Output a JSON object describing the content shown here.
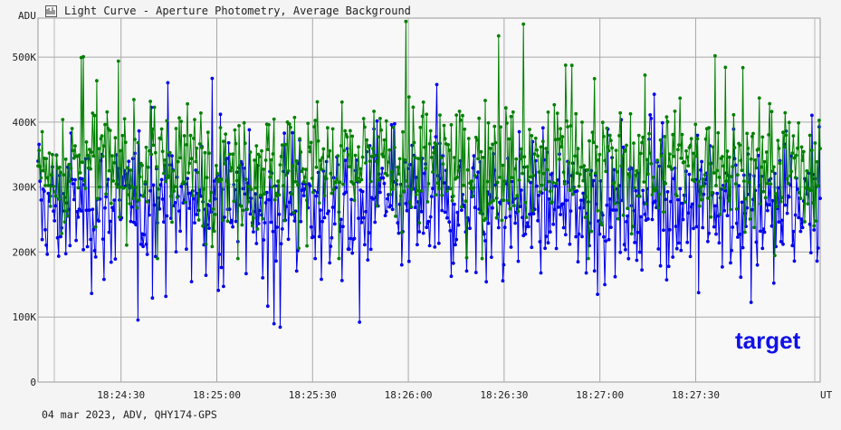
{
  "window": {
    "title": "Light Curve - Aperture Photometry, Average Background",
    "icon": "light-curve-app-icon"
  },
  "footer": {
    "info": "04 mar 2023, ADV, QHY174-GPS"
  },
  "chart_data": {
    "type": "scatter",
    "title": "Light Curve - Aperture Photometry, Average Background",
    "xlabel": "UT",
    "ylabel": "ADU",
    "x_range": [
      "18:24:04",
      "18:28:09"
    ],
    "ylim": [
      0,
      560000
    ],
    "y_ticks": [
      {
        "value": 0,
        "label": "0"
      },
      {
        "value": 100000,
        "label": "100K"
      },
      {
        "value": 200000,
        "label": "200K"
      },
      {
        "value": 300000,
        "label": "300K"
      },
      {
        "value": 400000,
        "label": "400K"
      },
      {
        "value": 500000,
        "label": "500K"
      }
    ],
    "x_ticks": [
      {
        "value": "18:24:30",
        "label": "18:24:30"
      },
      {
        "value": "18:25:00",
        "label": "18:25:00"
      },
      {
        "value": "18:25:30",
        "label": "18:25:30"
      },
      {
        "value": "18:26:00",
        "label": "18:26:00"
      },
      {
        "value": "18:26:30",
        "label": "18:26:30"
      },
      {
        "value": "18:27:00",
        "label": "18:27:00"
      },
      {
        "value": "18:27:30",
        "label": "18:27:30"
      }
    ],
    "grid": true,
    "series": [
      {
        "name": "target",
        "color": "#0000ee",
        "points_approx": 4900,
        "mean": 270000,
        "min": 82000,
        "max": 470000,
        "typical_range": [
          170000,
          380000
        ]
      },
      {
        "name": "",
        "color": "#008000",
        "points_approx": 4900,
        "mean": 335000,
        "min": 190000,
        "max": 570000,
        "typical_range": [
          250000,
          440000
        ]
      }
    ],
    "legend": [
      {
        "label": "target",
        "color": "#1010e8",
        "position": "bottom-right"
      }
    ]
  }
}
